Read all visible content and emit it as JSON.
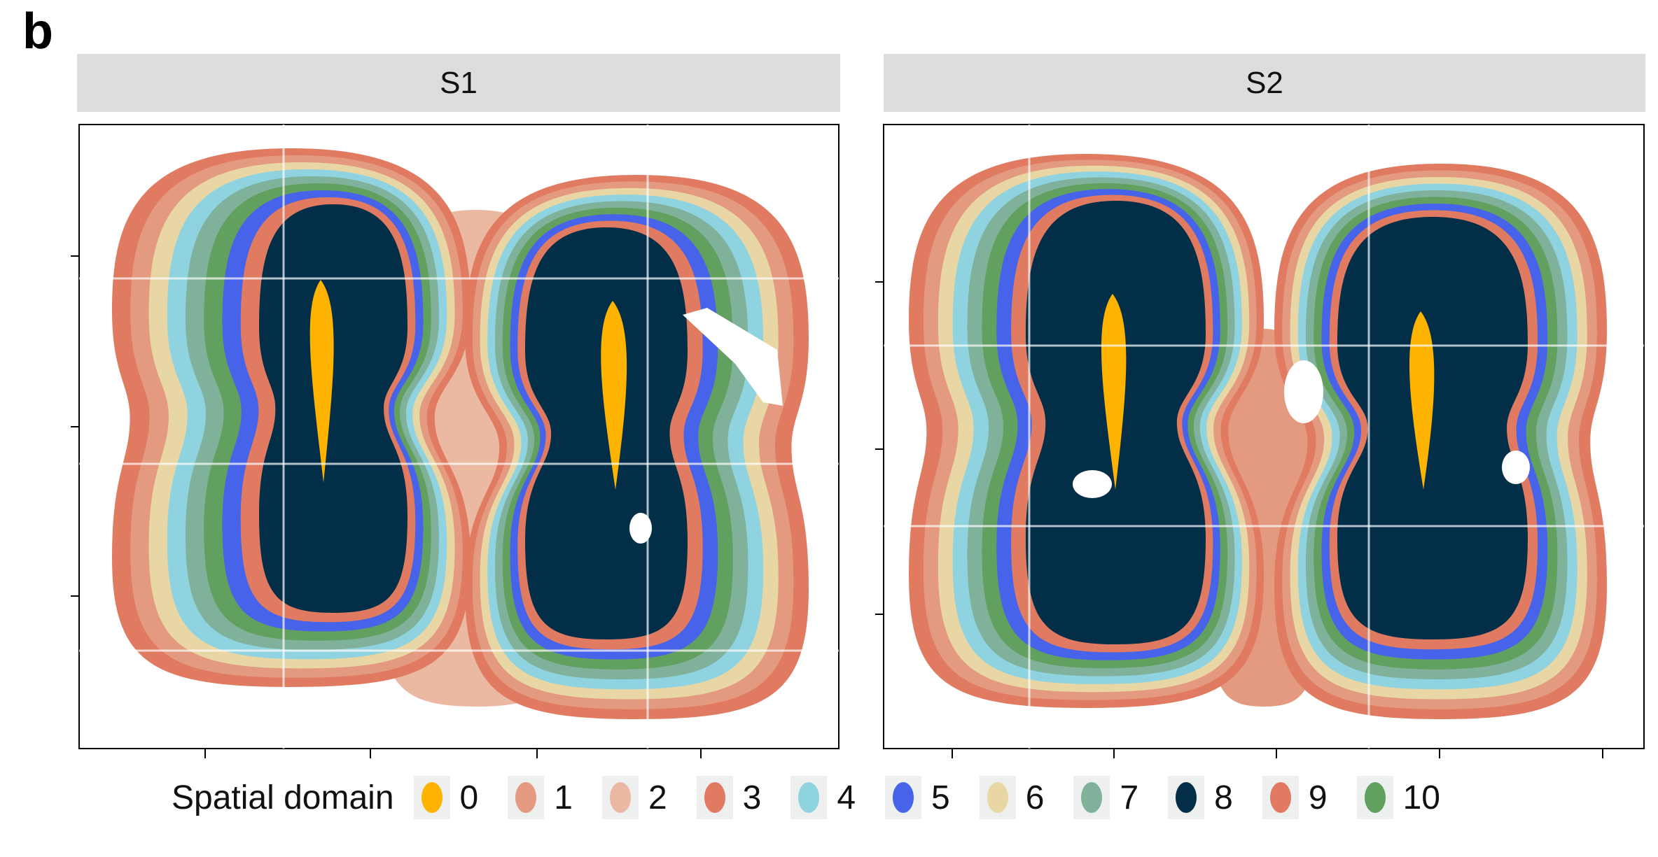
{
  "panel_letter": "b",
  "chart_data": {
    "type": "scatter",
    "description_title": "Spatial domain",
    "facets": [
      "S1",
      "S2"
    ],
    "legend": {
      "title": "Spatial domain",
      "placement": "bottom",
      "entries": [
        {
          "label": "0",
          "color": "#fdb300"
        },
        {
          "label": "1",
          "color": "#e49a80"
        },
        {
          "label": "2",
          "color": "#ebb9a2"
        },
        {
          "label": "3",
          "color": "#e07b62"
        },
        {
          "label": "4",
          "color": "#8fd3e0"
        },
        {
          "label": "5",
          "color": "#4763ea"
        },
        {
          "label": "6",
          "color": "#e8d6a4"
        },
        {
          "label": "7",
          "color": "#80b19a"
        },
        {
          "label": "8",
          "color": "#022f47"
        },
        {
          "label": "9",
          "color": "#e07b62"
        },
        {
          "label": "10",
          "color": "#62a060"
        }
      ]
    },
    "tick_labels_shown": false,
    "grid": false
  }
}
